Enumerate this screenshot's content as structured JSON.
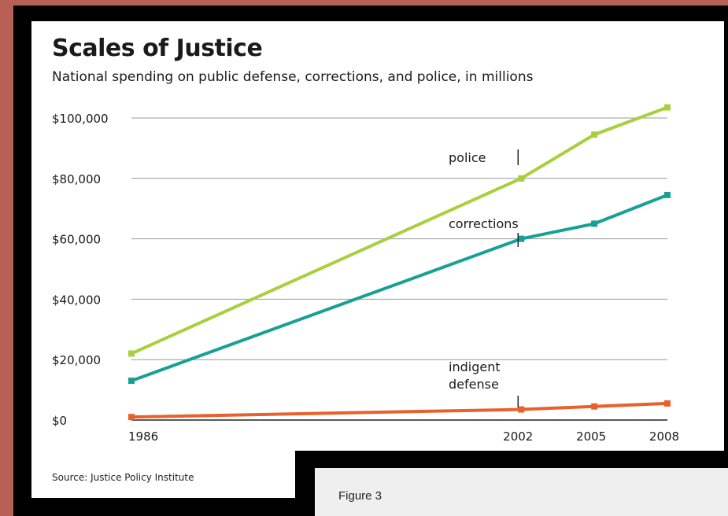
{
  "figure": {
    "source": "Source: Justice Policy Institute",
    "caption": "Figure 3"
  },
  "colors": {
    "police": "#a8cf3c",
    "corrections": "#17a096",
    "indigent_defense": "#e8612c",
    "grid": "#999999",
    "text": "#1a1a1a"
  },
  "chart_data": {
    "type": "line",
    "title": "Scales of Justice",
    "subtitle": "National spending on public defense, corrections, and police, in millions",
    "xlabel": "",
    "ylabel": "",
    "x": [
      1986,
      2002,
      2005,
      2008
    ],
    "x_tick_labels": [
      "1986",
      "2002",
      "2005",
      "2008"
    ],
    "ylim": [
      0,
      100000
    ],
    "y_ticks": [
      0,
      20000,
      40000,
      60000,
      80000,
      100000
    ],
    "y_tick_labels": [
      "$0",
      "$20,000",
      "$40,000",
      "$60,000",
      "$80,000",
      "$100,000"
    ],
    "grid": true,
    "series": [
      {
        "name": "police",
        "key": "police",
        "values": [
          22000,
          80000,
          94500,
          103500
        ]
      },
      {
        "name": "corrections",
        "key": "corrections",
        "values": [
          13000,
          60000,
          65000,
          74500
        ]
      },
      {
        "name": "indigent defense",
        "label_lines": [
          "indigent",
          "defense"
        ],
        "key": "indigent_defense",
        "values": [
          1000,
          3500,
          4500,
          5500
        ]
      }
    ]
  }
}
